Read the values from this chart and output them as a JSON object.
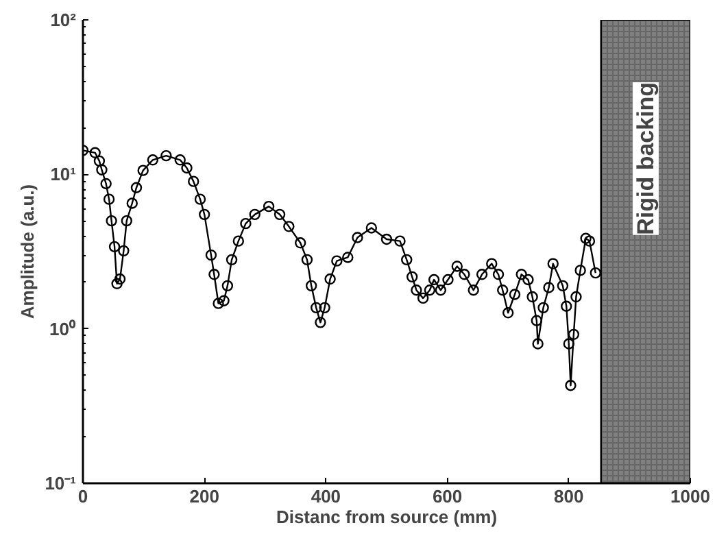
{
  "chart_data": {
    "type": "line",
    "xlabel": "Distanc from source (mm)",
    "ylabel": "Amplitude (a.u.)",
    "x": [
      0,
      20,
      27,
      31,
      38,
      43,
      47,
      52,
      56,
      61,
      67,
      72,
      81,
      88,
      99,
      115,
      137,
      160,
      171,
      182,
      193,
      200,
      211,
      216,
      223,
      232,
      238,
      245,
      256,
      268,
      283,
      306,
      324,
      339,
      358,
      369,
      376,
      384,
      391,
      398,
      407,
      418,
      436,
      452,
      475,
      500,
      522,
      533,
      542,
      549,
      560,
      571,
      578,
      589,
      601,
      616,
      628,
      643,
      657,
      673,
      684,
      691,
      700,
      711,
      722,
      733,
      740,
      747,
      749,
      758,
      767,
      774,
      790,
      796,
      800,
      803,
      808,
      812,
      819,
      828,
      834,
      844
    ],
    "series": [
      {
        "color": "#000000",
        "values": [
          14.3,
          13.8,
          12.2,
          10.7,
          8.7,
          6.9,
          5.0,
          3.4,
          1.96,
          2.1,
          3.2,
          5.0,
          6.5,
          8.2,
          10.6,
          12.4,
          13.2,
          12.4,
          11.0,
          9.0,
          6.9,
          5.5,
          3.0,
          2.25,
          1.46,
          1.52,
          1.9,
          2.8,
          3.7,
          4.8,
          5.5,
          6.2,
          5.5,
          4.6,
          3.6,
          2.8,
          1.9,
          1.37,
          1.1,
          1.37,
          2.1,
          2.75,
          2.9,
          3.9,
          4.5,
          3.8,
          3.7,
          2.8,
          2.17,
          1.78,
          1.58,
          1.78,
          2.08,
          1.78,
          2.08,
          2.54,
          2.25,
          1.78,
          2.25,
          2.64,
          2.25,
          1.78,
          1.27,
          1.67,
          2.25,
          2.08,
          1.61,
          1.13,
          0.8,
          1.37,
          1.85,
          2.64,
          1.9,
          1.4,
          0.8,
          0.43,
          0.92,
          1.61,
          2.39,
          3.85,
          3.7,
          2.3
        ]
      }
    ],
    "log": "y",
    "xlim": [
      0,
      1000
    ],
    "ylim": [
      0.1,
      100
    ],
    "xticks": [
      0,
      200,
      400,
      600,
      800,
      1000
    ],
    "yticks": [
      {
        "value": 0.1,
        "label": "10⁻¹"
      },
      {
        "value": 1,
        "label": "10⁰"
      },
      {
        "value": 10,
        "label": "10¹"
      },
      {
        "value": 100,
        "label": "10²"
      }
    ],
    "bands": [
      {
        "axis": "x",
        "from": 853,
        "to": 1000,
        "label": "Rigid backing",
        "color": "#808080"
      }
    ],
    "marker": "circle",
    "line_style": "solid",
    "grid": false
  }
}
